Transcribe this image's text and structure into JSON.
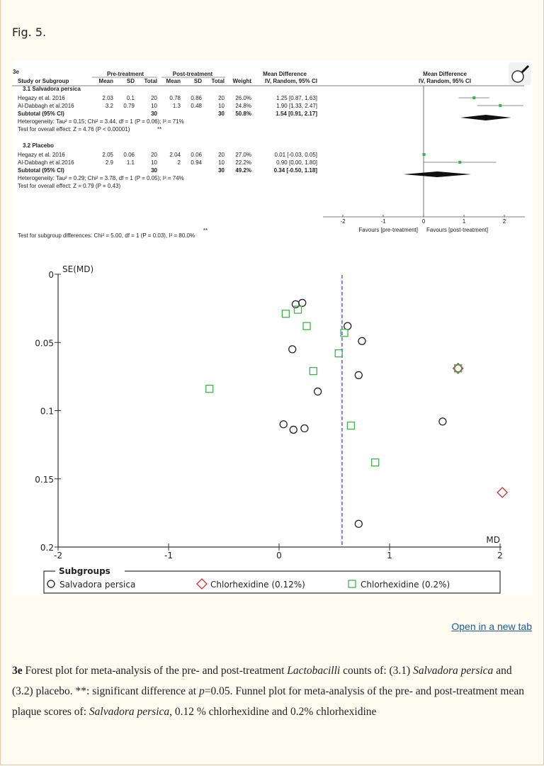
{
  "figure_label": "Fig. 5.",
  "open_link": "Open in a new tab",
  "magnifier_icon": "magnifier-icon",
  "forest": {
    "panel_label": "3e",
    "headers": {
      "pre": "Pre-treatment",
      "post": "Post-treatment",
      "md": "Mean Difference",
      "md_method": "IV, Random, 95% CI",
      "plot_md": "Mean Difference",
      "plot_method": "IV, Random, 95% CI",
      "cols": [
        "Study or Subgroup",
        "Mean",
        "SD",
        "Total",
        "Mean",
        "SD",
        "Total",
        "Weight",
        "IV, Random, 95% CI"
      ]
    },
    "subgroups": [
      {
        "title": "3.1 Salvadora persica",
        "studies": [
          {
            "study": "Hegazy et al. 2016",
            "pre_mean": "2.03",
            "pre_sd": "0.1",
            "pre_total": "20",
            "post_mean": "0.78",
            "post_sd": "0.86",
            "post_total": "20",
            "weight": "26.0%",
            "ci": "1.25 [0.87, 1.63]",
            "md": 1.25,
            "lo": 0.87,
            "hi": 1.63
          },
          {
            "study": "Al-Dabbagh et al.2016",
            "pre_mean": "3.2",
            "pre_sd": "0.79",
            "pre_total": "10",
            "post_mean": "1.3",
            "post_sd": "0.48",
            "post_total": "10",
            "weight": "24.8%",
            "ci": "1.90 [1.33, 2.47]",
            "md": 1.9,
            "lo": 1.33,
            "hi": 2.47
          }
        ],
        "subtotal": {
          "label": "Subtotal (95% CI)",
          "pre_total": "30",
          "post_total": "30",
          "weight": "50.8%",
          "ci": "1.54 [0.91, 2.17]",
          "md": 1.54,
          "lo": 0.91,
          "hi": 2.17
        },
        "heterogeneity": "Heterogeneity: Tau² = 0.15; Chi² = 3.44, df = 1 (P = 0.06); I² = 71%",
        "overall": "Test for overall effect: Z = 4.76 (P < 0.00001)",
        "overall_mark": "**"
      },
      {
        "title": "3.2 Placebo",
        "studies": [
          {
            "study": "Hegazy et al. 2016",
            "pre_mean": "2.05",
            "pre_sd": "0.06",
            "pre_total": "20",
            "post_mean": "2.04",
            "post_sd": "0.06",
            "post_total": "20",
            "weight": "27.0%",
            "ci": "0.01 [-0.03, 0.05]",
            "md": 0.01,
            "lo": -0.03,
            "hi": 0.05
          },
          {
            "study": "Al-Dabbagh et al.2016",
            "pre_mean": "2.9",
            "pre_sd": "1.1",
            "pre_total": "10",
            "post_mean": "2",
            "post_sd": "0.94",
            "post_total": "10",
            "weight": "22.2%",
            "ci": "0.90 [0.00, 1.80]",
            "md": 0.9,
            "lo": 0.0,
            "hi": 1.8
          }
        ],
        "subtotal": {
          "label": "Subtotal (95% CI)",
          "pre_total": "30",
          "post_total": "30",
          "weight": "49.2%",
          "ci": "0.34 [-0.50, 1.18]",
          "md": 0.34,
          "lo": -0.5,
          "hi": 1.18
        },
        "heterogeneity": "Heterogeneity: Tau² = 0.29; Chi² = 3.78, df = 1 (P = 0.05); I² = 74%",
        "overall": "Test for overall effect: Z = 0.79 (P = 0.43)",
        "overall_mark": ""
      }
    ],
    "subgroup_diff": "Test for subgroup differences: Chi² = 5.00, df = 1 (P = 0.03), I² = 80.0%",
    "subgroup_diff_mark": "**",
    "axis_ticks": [
      -2,
      -1,
      0,
      1,
      2
    ],
    "favours_left": "Favours [pre-treatment]",
    "favours_right": "Favours [post-treatment]",
    "colors": {
      "study_marker": "#3cb44b",
      "diamond": "#111111",
      "significance": "#e03030"
    }
  },
  "chart_data": {
    "type": "scatter",
    "title": "",
    "xlabel": "MD",
    "ylabel": "SE(MD)",
    "xlim": [
      -2,
      2
    ],
    "ylim": [
      0,
      0.2
    ],
    "y_inverted": true,
    "x_ticks": [
      -2,
      -1,
      0,
      1,
      2
    ],
    "y_ticks": [
      0,
      0.05,
      0.1,
      0.15,
      0.2
    ],
    "reference_line_x": 0.57,
    "reference_line_color": "#3a3ac8",
    "legend_title": "Subgroups",
    "legend_position": "bottom",
    "series": [
      {
        "name": "Salvadora persica",
        "marker": "circle",
        "color": "#222222",
        "points": [
          [
            0.15,
            0.022
          ],
          [
            0.21,
            0.021
          ],
          [
            0.62,
            0.038
          ],
          [
            0.75,
            0.049
          ],
          [
            0.12,
            0.055
          ],
          [
            0.72,
            0.074
          ],
          [
            0.35,
            0.086
          ],
          [
            0.04,
            0.11
          ],
          [
            0.13,
            0.114
          ],
          [
            0.23,
            0.113
          ],
          [
            1.48,
            0.108
          ],
          [
            0.72,
            0.183
          ],
          [
            1.62,
            0.069
          ]
        ]
      },
      {
        "name": "Chlorhexidine (0.12%)",
        "marker": "diamond",
        "color": "#c83232",
        "points": [
          [
            1.62,
            0.069
          ],
          [
            2.02,
            0.16
          ]
        ]
      },
      {
        "name": "Chlorhexidine (0.2%)",
        "marker": "square",
        "color": "#3cb44b",
        "points": [
          [
            0.06,
            0.029
          ],
          [
            0.17,
            0.026
          ],
          [
            0.25,
            0.038
          ],
          [
            0.59,
            0.043
          ],
          [
            0.54,
            0.058
          ],
          [
            0.31,
            0.071
          ],
          [
            -0.63,
            0.084
          ],
          [
            0.65,
            0.111
          ],
          [
            0.87,
            0.138
          ],
          [
            1.62,
            0.069
          ]
        ]
      }
    ]
  },
  "caption": {
    "label": "3e",
    "p1": " Forest plot for meta-analysis of the pre- and post-treatment ",
    "i1": "Lactobacilli",
    "p2": " counts of: (3.1) ",
    "i2": "Salvadora persica",
    "p3": " and (3.2) placebo. **: significant difference at ",
    "i3": "p",
    "p4": "=0.05. Funnel plot for meta-analysis of the pre- and post-treatment mean plaque scores of: ",
    "i4": "Salvadora persica",
    "p5": ", 0.12 % chlorhexidine and 0.2% chlorhexidine"
  }
}
